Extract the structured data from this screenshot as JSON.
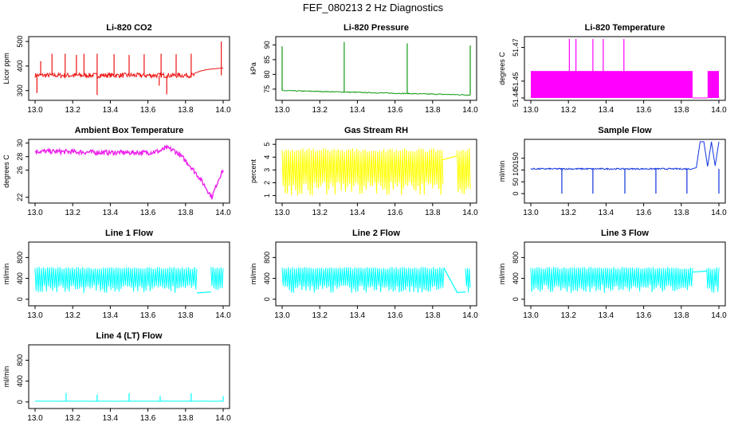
{
  "main_title": "FEF_080213  2 Hz Diagnostics",
  "chart_data": [
    {
      "type": "line",
      "title": "Li-820 CO2",
      "ylabel": "Licor ppm",
      "xlim": [
        13.0,
        14.0
      ],
      "xticks": [
        "13.0",
        "13.2",
        "13.4",
        "13.6",
        "13.8",
        "14.0"
      ],
      "ylim": [
        270,
        510
      ],
      "yticks": [
        300,
        400,
        500
      ],
      "color": "#ee1111",
      "series": [
        {
          "name": "CO2",
          "style": "noise",
          "base": 362,
          "amp": 10,
          "spikes_up": [
            {
              "x": 13.03,
              "y": 420
            },
            {
              "x": 13.09,
              "y": 450
            },
            {
              "x": 13.16,
              "y": 450
            },
            {
              "x": 13.22,
              "y": 445
            },
            {
              "x": 13.26,
              "y": 450
            },
            {
              "x": 13.33,
              "y": 450
            },
            {
              "x": 13.42,
              "y": 448
            },
            {
              "x": 13.5,
              "y": 445
            },
            {
              "x": 13.58,
              "y": 448
            },
            {
              "x": 13.67,
              "y": 450
            },
            {
              "x": 13.75,
              "y": 448
            },
            {
              "x": 13.83,
              "y": 450
            },
            {
              "x": 13.99,
              "y": 500
            }
          ],
          "spikes_down": [
            {
              "x": 13.01,
              "y": 290
            },
            {
              "x": 13.33,
              "y": 282
            },
            {
              "x": 13.66,
              "y": 320
            },
            {
              "x": 13.7,
              "y": 285
            }
          ],
          "tail": {
            "start": 13.85,
            "values": [
              380,
              385,
              388,
              390,
              392
            ]
          }
        }
      ]
    },
    {
      "type": "line",
      "title": "Li-820 Pressure",
      "ylabel": "kPa",
      "xlim": [
        13.0,
        14.0
      ],
      "xticks": [
        "13.0",
        "13.2",
        "13.4",
        "13.6",
        "13.8",
        "14.0"
      ],
      "ylim": [
        72,
        92
      ],
      "yticks": [
        75,
        80,
        85,
        90
      ],
      "color": "#119911",
      "series": [
        {
          "name": "Pressure",
          "style": "drift",
          "start": 74.5,
          "end": 73.0,
          "amp": 0.15,
          "spikes_up": [
            {
              "x": 13.0,
              "y": 89.5
            },
            {
              "x": 13.33,
              "y": 91
            },
            {
              "x": 13.665,
              "y": 90.5
            },
            {
              "x": 14.0,
              "y": 89.8
            }
          ]
        }
      ]
    },
    {
      "type": "area",
      "title": "Li-820 Temperature",
      "ylabel": "degrees C",
      "xlim": [
        13.0,
        14.0
      ],
      "xticks": [
        "13.0",
        "13.2",
        "13.4",
        "13.6",
        "13.8",
        "14.0"
      ],
      "ylim": [
        51.44,
        51.475
      ],
      "yticks": [
        "51.44",
        "51.45",
        "51.47"
      ],
      "color": "#ff00ff",
      "series": [
        {
          "name": "Temperature",
          "low": 51.44,
          "high": 51.456,
          "segments": [
            [
              13.0,
              13.86
            ],
            [
              13.94,
              14.0
            ]
          ],
          "spikes_up": [
            {
              "x": 13.205,
              "y": 51.475
            },
            {
              "x": 13.24,
              "y": 51.475
            },
            {
              "x": 13.33,
              "y": 51.475
            },
            {
              "x": 13.385,
              "y": 51.475
            },
            {
              "x": 13.495,
              "y": 51.475
            }
          ]
        }
      ]
    },
    {
      "type": "line",
      "title": "Ambient Box Temperature",
      "ylabel": "degrees C",
      "xlim": [
        13.0,
        14.0
      ],
      "xticks": [
        "13.0",
        "13.2",
        "13.4",
        "13.6",
        "13.8",
        "14.0"
      ],
      "ylim": [
        21.5,
        30.2
      ],
      "yticks": [
        22,
        26,
        28,
        30
      ],
      "color": "#ee22ee",
      "series": [
        {
          "name": "Box Temp",
          "style": "points",
          "x": [
            13.0,
            13.2,
            13.4,
            13.6,
            13.66,
            13.7,
            13.74,
            13.78,
            13.82,
            13.86,
            13.9,
            13.94,
            13.96,
            13.98,
            14.0
          ],
          "y": [
            28.8,
            28.7,
            28.6,
            28.6,
            28.8,
            29.3,
            28.9,
            28.0,
            26.8,
            25.4,
            23.8,
            22.0,
            23.5,
            25.0,
            26.0
          ],
          "amp": 0.35
        }
      ]
    },
    {
      "type": "line",
      "title": "Gas Stream RH",
      "ylabel": "percent",
      "xlim": [
        13.0,
        14.0
      ],
      "xticks": [
        "13.0",
        "13.2",
        "13.4",
        "13.6",
        "13.8",
        "14.0"
      ],
      "ylim": [
        0.6,
        5.2
      ],
      "yticks": [
        1,
        2,
        3,
        4,
        5
      ],
      "color": "#ffff00",
      "series": [
        {
          "name": "RH",
          "style": "band",
          "low": 1.0,
          "high": 4.7,
          "segments": [
            [
              13.0,
              13.855
            ],
            [
              13.93,
              14.0
            ]
          ],
          "bridge": [
            [
              13.855,
              3.8
            ],
            [
              13.93,
              4.1
            ]
          ]
        }
      ]
    },
    {
      "type": "line",
      "title": "Sample Flow",
      "ylabel": "ml/min",
      "xlim": [
        13.0,
        14.0
      ],
      "xticks": [
        "13.0",
        "13.2",
        "13.4",
        "13.6",
        "13.8",
        "14.0"
      ],
      "ylim": [
        -30,
        220
      ],
      "yticks": [
        0,
        50,
        100,
        150
      ],
      "color": "#1133dd",
      "series": [
        {
          "name": "Sample Flow",
          "style": "noise",
          "base": 105,
          "amp": 3,
          "spikes_down": [
            {
              "x": 13.165,
              "y": 0
            },
            {
              "x": 13.33,
              "y": 0
            },
            {
              "x": 13.5,
              "y": 0
            },
            {
              "x": 13.665,
              "y": 0
            },
            {
              "x": 13.83,
              "y": 0
            },
            {
              "x": 14.0,
              "y": 0
            }
          ],
          "tail": {
            "start": 13.86,
            "values": [
              110,
              220,
              220,
              115,
              220,
              118,
              220
            ]
          }
        }
      ]
    },
    {
      "type": "line",
      "title": "Line 1 Flow",
      "ylabel": "ml/min",
      "xlim": [
        13.0,
        14.0
      ],
      "xticks": [
        "13.0",
        "13.2",
        "13.4",
        "13.6",
        "13.8",
        "14.0"
      ],
      "ylim": [
        -80,
        1050
      ],
      "yticks": [
        0,
        400,
        800
      ],
      "color": "#00ffff",
      "series": [
        {
          "name": "Line 1",
          "style": "band",
          "low": 120,
          "high": 620,
          "segments": [
            [
              13.0,
              13.86
            ],
            [
              13.935,
              14.0
            ]
          ],
          "bridge": [
            [
              13.86,
              120
            ],
            [
              13.935,
              140
            ]
          ]
        }
      ]
    },
    {
      "type": "line",
      "title": "Line 2 Flow",
      "ylabel": "ml/min",
      "xlim": [
        13.0,
        14.0
      ],
      "xticks": [
        "13.0",
        "13.2",
        "13.4",
        "13.6",
        "13.8",
        "14.0"
      ],
      "ylim": [
        -80,
        1050
      ],
      "yticks": [
        0,
        400,
        800
      ],
      "color": "#00ffff",
      "series": [
        {
          "name": "Line 2",
          "style": "band",
          "low": 120,
          "high": 620,
          "segments": [
            [
              13.0,
              13.86
            ],
            [
              13.975,
              14.0
            ]
          ],
          "bridge": [
            [
              13.86,
              600
            ],
            [
              13.93,
              130
            ],
            [
              13.975,
              140
            ]
          ]
        }
      ]
    },
    {
      "type": "line",
      "title": "Line 3 Flow",
      "ylabel": "ml/min",
      "xlim": [
        13.0,
        14.0
      ],
      "xticks": [
        "13.0",
        "13.2",
        "13.4",
        "13.6",
        "13.8",
        "14.0"
      ],
      "ylim": [
        -80,
        1050
      ],
      "yticks": [
        0,
        400,
        800
      ],
      "color": "#00ffff",
      "series": [
        {
          "name": "Line 3",
          "style": "band",
          "low": 120,
          "high": 620,
          "segments": [
            [
              13.0,
              13.86
            ],
            [
              13.935,
              14.0
            ]
          ],
          "bridge": [
            [
              13.86,
              520
            ],
            [
              13.935,
              540
            ]
          ]
        }
      ]
    },
    {
      "type": "line",
      "title": "Line 4 (LT) Flow",
      "ylabel": "ml/min",
      "xlim": [
        13.0,
        14.0
      ],
      "xticks": [
        "13.0",
        "13.2",
        "13.4",
        "13.6",
        "13.8",
        "14.0"
      ],
      "ylim": [
        -80,
        1050
      ],
      "yticks": [
        0,
        400,
        800
      ],
      "color": "#00ffff",
      "series": [
        {
          "name": "Line 4",
          "style": "noise",
          "base": 15,
          "amp": 3,
          "spikes_up": [
            {
              "x": 13.165,
              "y": 170
            },
            {
              "x": 13.33,
              "y": 140
            },
            {
              "x": 13.5,
              "y": 170
            },
            {
              "x": 13.665,
              "y": 120
            },
            {
              "x": 13.83,
              "y": 170
            },
            {
              "x": 14.0,
              "y": 110
            }
          ]
        }
      ]
    }
  ]
}
